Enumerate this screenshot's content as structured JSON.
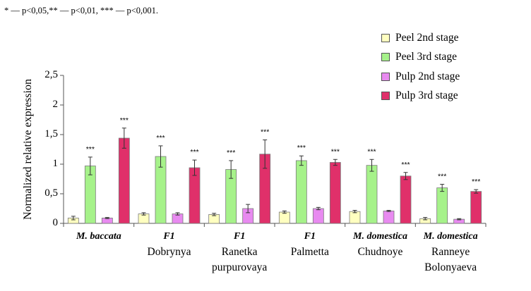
{
  "note": "* — p<0,05,** — p<0,01, *** — p<0,001.",
  "chart_data": {
    "type": "bar",
    "ylabel": "Normalized relative expression",
    "xlabel": "",
    "ylim": [
      0,
      2.5
    ],
    "yticks": [
      {
        "value": 0,
        "label": "0"
      },
      {
        "value": 0.5,
        "label": "0,5"
      },
      {
        "value": 1,
        "label": "1"
      },
      {
        "value": 1.5,
        "label": "1,5"
      },
      {
        "value": 2,
        "label": "2"
      },
      {
        "value": 2.5,
        "label": "2,5"
      }
    ],
    "grid": false,
    "legend_position": "top-right",
    "categories": [
      {
        "species": "M. baccata",
        "name": []
      },
      {
        "species": "F1",
        "name": [
          "Dobrynya"
        ]
      },
      {
        "species": "F1",
        "name": [
          "Ranetka",
          "purpurovaya"
        ]
      },
      {
        "species": "F1",
        "name": [
          "Palmetta"
        ]
      },
      {
        "species": "M. domestica",
        "name": [
          "Chudnoye"
        ]
      },
      {
        "species": "M. domestica",
        "name": [
          "Ranneye",
          "Bolonyaeva"
        ]
      }
    ],
    "series": [
      {
        "name": "Peel 2nd stage",
        "color": "#ffffc0",
        "values": [
          0.09,
          0.16,
          0.15,
          0.19,
          0.2,
          0.08
        ],
        "errors": [
          0.03,
          0.02,
          0.02,
          0.02,
          0.02,
          0.02
        ],
        "sig": [
          "",
          "",
          "",
          "",
          "",
          ""
        ]
      },
      {
        "name": "Peel 3rd stage",
        "color": "#a6f28a",
        "values": [
          0.97,
          1.13,
          0.91,
          1.06,
          0.98,
          0.6
        ],
        "errors": [
          0.15,
          0.18,
          0.15,
          0.08,
          0.1,
          0.06
        ],
        "sig": [
          "***",
          "***",
          "***",
          "***",
          "***",
          "***"
        ]
      },
      {
        "name": "Pulp 2nd stage",
        "color": "#e88af0",
        "values": [
          0.09,
          0.16,
          0.25,
          0.25,
          0.21,
          0.07
        ],
        "errors": [
          0.01,
          0.02,
          0.07,
          0.02,
          0.01,
          0.01
        ],
        "sig": [
          "",
          "",
          "",
          "",
          "",
          ""
        ]
      },
      {
        "name": "Pulp 3rd stage",
        "color": "#e0306a",
        "values": [
          1.44,
          0.94,
          1.17,
          1.03,
          0.8,
          0.54
        ],
        "errors": [
          0.17,
          0.13,
          0.24,
          0.05,
          0.06,
          0.03
        ],
        "sig": [
          "***",
          "***",
          "***",
          "***",
          "***",
          "***"
        ]
      }
    ]
  }
}
